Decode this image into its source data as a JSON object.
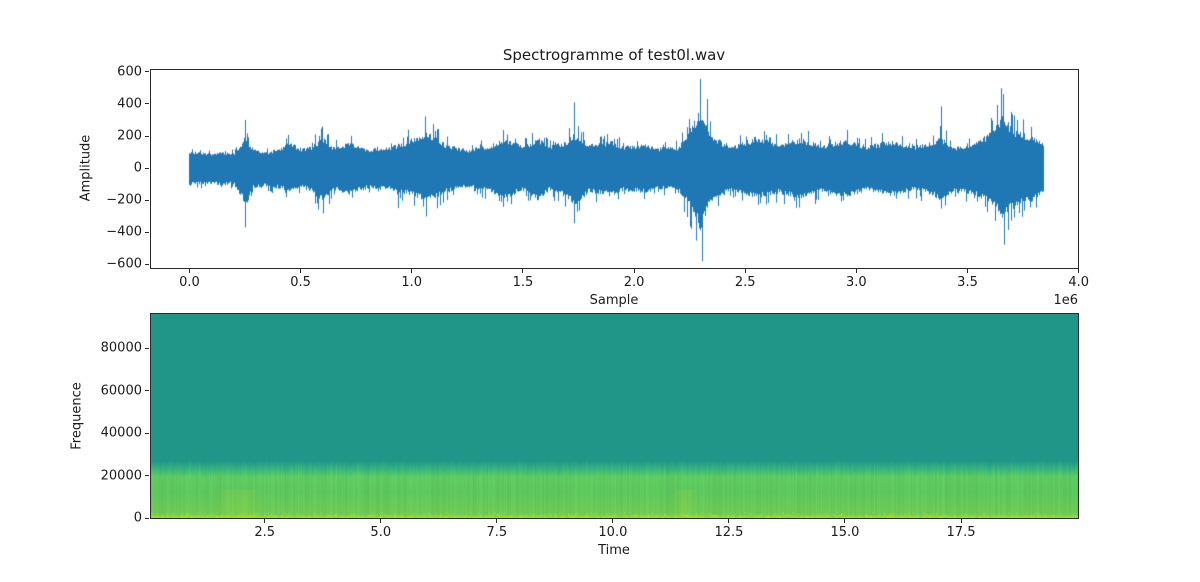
{
  "figure": {
    "title": "Spectrogramme of test0l.wav",
    "background": "#ffffff"
  },
  "chart_data": [
    {
      "type": "line",
      "name": "waveform",
      "title": "Spectrogramme of test0l.wav",
      "xlabel": "Sample",
      "ylabel": "Amplitude",
      "x_offset_label": "1e6",
      "line_color": "#1f77b4",
      "xlim": [
        -173000,
        3997000
      ],
      "ylim": [
        -624,
        612
      ],
      "n_samples": 3840000,
      "xticks": {
        "values": [
          0,
          500000,
          1000000,
          1500000,
          2000000,
          2500000,
          3000000,
          3500000,
          4000000
        ],
        "labels": [
          "0.0",
          "0.5",
          "1.0",
          "1.5",
          "2.0",
          "2.5",
          "3.0",
          "3.5",
          "4.0"
        ]
      },
      "yticks": {
        "values": [
          600,
          400,
          200,
          0,
          -200,
          -400,
          -600
        ],
        "labels": [
          "600",
          "400",
          "200",
          "0",
          "−200",
          "−400",
          "−600"
        ]
      },
      "envelope_max": [
        [
          0,
          135
        ],
        [
          30000,
          118
        ],
        [
          100000,
          112
        ],
        [
          150000,
          125
        ],
        [
          200000,
          118
        ],
        [
          235000,
          200
        ],
        [
          255000,
          300
        ],
        [
          280000,
          155
        ],
        [
          350000,
          130
        ],
        [
          420000,
          165
        ],
        [
          450000,
          235
        ],
        [
          500000,
          150
        ],
        [
          550000,
          185
        ],
        [
          600000,
          265
        ],
        [
          650000,
          170
        ],
        [
          720000,
          215
        ],
        [
          800000,
          150
        ],
        [
          900000,
          175
        ],
        [
          980000,
          235
        ],
        [
          1030000,
          290
        ],
        [
          1070000,
          325
        ],
        [
          1150000,
          205
        ],
        [
          1250000,
          150
        ],
        [
          1350000,
          190
        ],
        [
          1420000,
          270
        ],
        [
          1500000,
          180
        ],
        [
          1570000,
          265
        ],
        [
          1620000,
          180
        ],
        [
          1700000,
          235
        ],
        [
          1730000,
          310
        ],
        [
          1800000,
          200
        ],
        [
          1900000,
          235
        ],
        [
          1950000,
          185
        ],
        [
          2050000,
          205
        ],
        [
          2100000,
          165
        ],
        [
          2200000,
          175
        ],
        [
          2270000,
          420
        ],
        [
          2300000,
          560
        ],
        [
          2340000,
          310
        ],
        [
          2400000,
          225
        ],
        [
          2450000,
          185
        ],
        [
          2550000,
          275
        ],
        [
          2650000,
          205
        ],
        [
          2750000,
          255
        ],
        [
          2850000,
          195
        ],
        [
          2950000,
          245
        ],
        [
          3050000,
          185
        ],
        [
          3150000,
          235
        ],
        [
          3250000,
          185
        ],
        [
          3320000,
          205
        ],
        [
          3380000,
          270
        ],
        [
          3450000,
          175
        ],
        [
          3550000,
          235
        ],
        [
          3620000,
          340
        ],
        [
          3660000,
          490
        ],
        [
          3700000,
          360
        ],
        [
          3760000,
          300
        ],
        [
          3800000,
          260
        ],
        [
          3840000,
          210
        ]
      ],
      "envelope_min": [
        [
          0,
          -145
        ],
        [
          30000,
          -128
        ],
        [
          100000,
          -122
        ],
        [
          150000,
          -140
        ],
        [
          200000,
          -128
        ],
        [
          235000,
          -250
        ],
        [
          255000,
          -370
        ],
        [
          280000,
          -175
        ],
        [
          350000,
          -150
        ],
        [
          420000,
          -175
        ],
        [
          450000,
          -205
        ],
        [
          500000,
          -160
        ],
        [
          550000,
          -200
        ],
        [
          600000,
          -300
        ],
        [
          650000,
          -180
        ],
        [
          720000,
          -225
        ],
        [
          800000,
          -170
        ],
        [
          900000,
          -185
        ],
        [
          980000,
          -225
        ],
        [
          1030000,
          -260
        ],
        [
          1070000,
          -300
        ],
        [
          1150000,
          -215
        ],
        [
          1250000,
          -160
        ],
        [
          1350000,
          -200
        ],
        [
          1420000,
          -265
        ],
        [
          1500000,
          -190
        ],
        [
          1570000,
          -285
        ],
        [
          1620000,
          -190
        ],
        [
          1700000,
          -255
        ],
        [
          1730000,
          -345
        ],
        [
          1800000,
          -210
        ],
        [
          1900000,
          -245
        ],
        [
          1950000,
          -190
        ],
        [
          2050000,
          -215
        ],
        [
          2100000,
          -175
        ],
        [
          2200000,
          -185
        ],
        [
          2270000,
          -430
        ],
        [
          2300000,
          -580
        ],
        [
          2340000,
          -330
        ],
        [
          2400000,
          -235
        ],
        [
          2450000,
          -190
        ],
        [
          2550000,
          -265
        ],
        [
          2650000,
          -215
        ],
        [
          2750000,
          -265
        ],
        [
          2850000,
          -205
        ],
        [
          2950000,
          -255
        ],
        [
          3050000,
          -195
        ],
        [
          3150000,
          -245
        ],
        [
          3250000,
          -195
        ],
        [
          3320000,
          -215
        ],
        [
          3380000,
          -285
        ],
        [
          3450000,
          -185
        ],
        [
          3550000,
          -245
        ],
        [
          3620000,
          -340
        ],
        [
          3660000,
          -470
        ],
        [
          3700000,
          -370
        ],
        [
          3760000,
          -310
        ],
        [
          3800000,
          -290
        ],
        [
          3840000,
          -230
        ]
      ],
      "spikes": [
        [
          250000,
          300
        ],
        [
          252000,
          -370
        ],
        [
          940000,
          -250
        ],
        [
          1060000,
          322
        ],
        [
          1065000,
          -302
        ],
        [
          1728000,
          410
        ],
        [
          1732000,
          -345
        ],
        [
          2295000,
          556
        ],
        [
          2305000,
          -582
        ],
        [
          2330000,
          430
        ],
        [
          3380000,
          385
        ],
        [
          3650000,
          498
        ],
        [
          3662000,
          -478
        ],
        [
          3700000,
          335
        ]
      ]
    },
    {
      "type": "heatmap",
      "name": "spectrogram",
      "xlabel": "Time",
      "ylabel": "Frequence",
      "xlim": [
        0.05,
        20.02
      ],
      "ylim": [
        0,
        96000
      ],
      "band_cutoff_hz": 25000,
      "xticks": {
        "values": [
          2.5,
          5.0,
          7.5,
          10.0,
          12.5,
          15.0,
          17.5
        ],
        "labels": [
          "2.5",
          "5.0",
          "7.5",
          "10.0",
          "12.5",
          "15.0",
          "17.5"
        ]
      },
      "yticks": {
        "values": [
          0,
          20000,
          40000,
          60000,
          80000
        ],
        "labels": [
          "0",
          "20000",
          "40000",
          "60000",
          "80000"
        ]
      },
      "colors": {
        "high_band": "#209689",
        "transition": "#3cb878",
        "low_band": "#5ec75e",
        "low_band_bottom": "#8cd744",
        "speckle": "#cfe01e",
        "speckle_soft": "#aadc32"
      },
      "bright_patches_time": [
        1.75,
        2.1,
        11.55
      ]
    }
  ]
}
